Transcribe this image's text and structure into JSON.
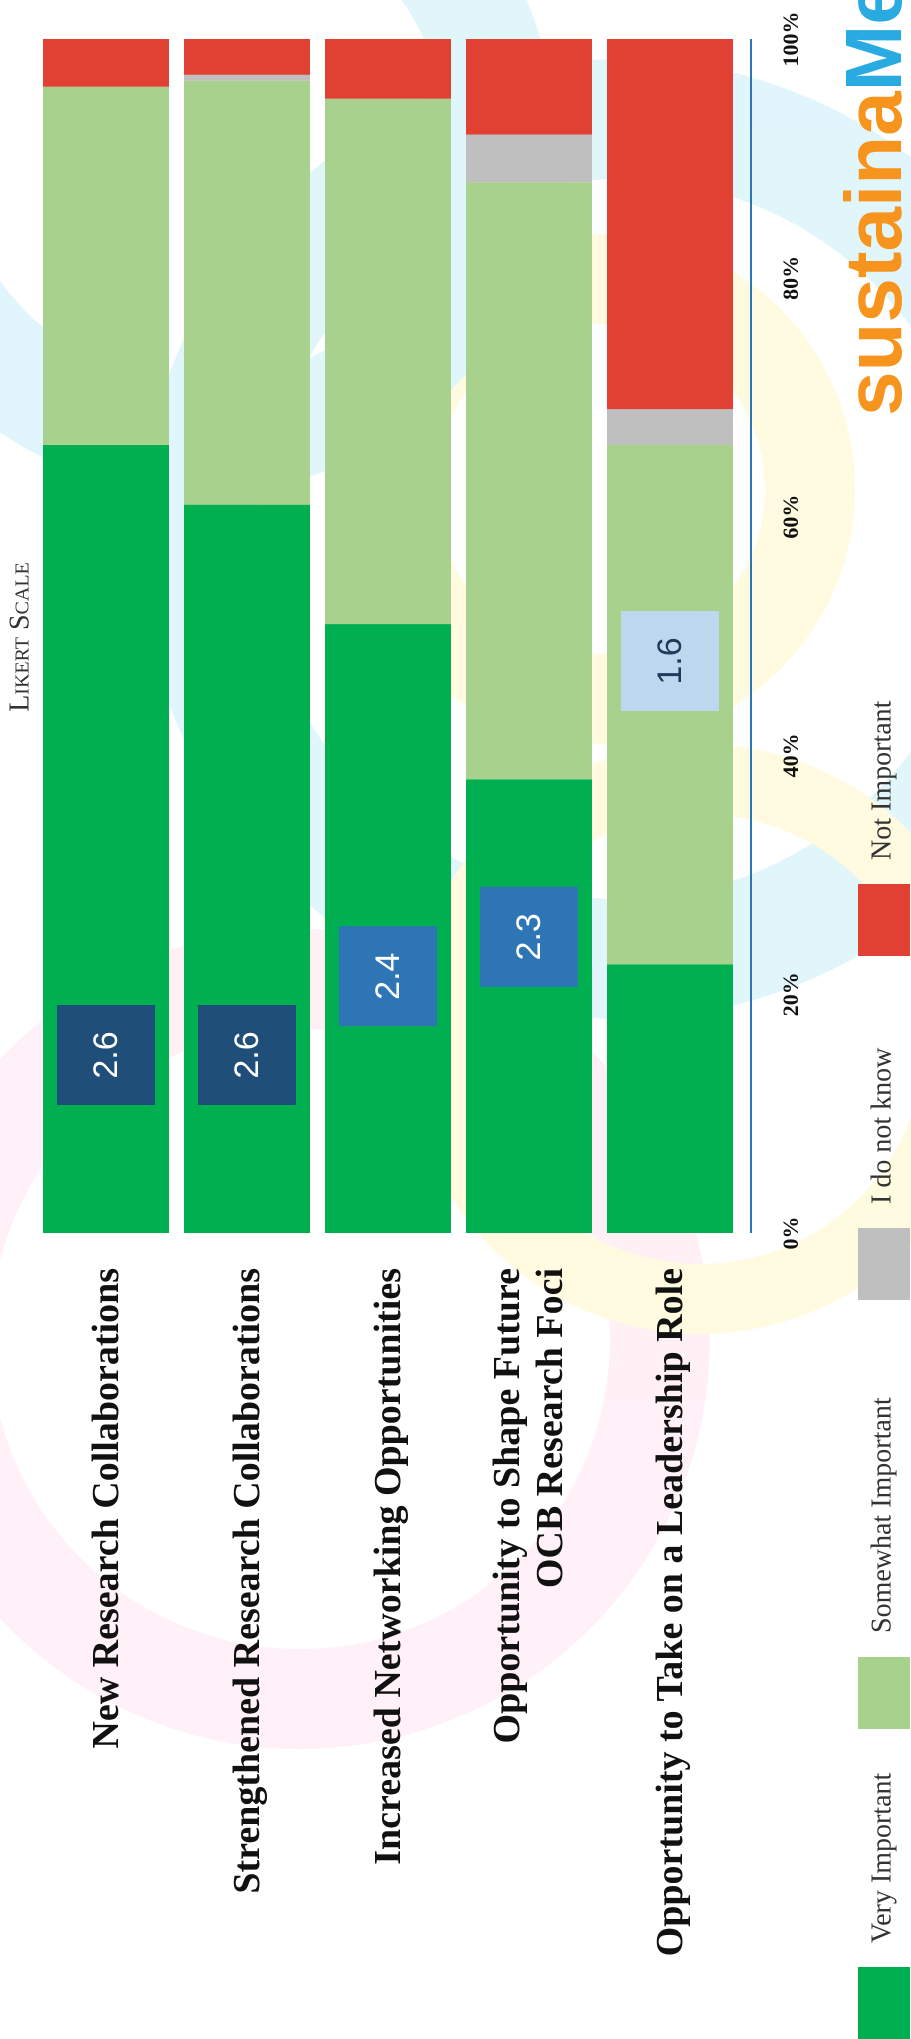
{
  "chart_data": {
    "type": "stacked_bar",
    "orientation": "horizontal",
    "title": "Likert Scale",
    "categories": [
      "New Research Collaborations",
      "Strengthened Research Collaborations",
      "Increased Networking Opportunities",
      "Opportunity to Shape Future\nOCB Research Foci",
      "Opportunity to Take on a Leadership Role"
    ],
    "series": [
      {
        "name": "Very Important",
        "color": "#00b050",
        "values": [
          66,
          61,
          51,
          38,
          22.5
        ]
      },
      {
        "name": "Somewhat Important",
        "color": "#a9d18e",
        "values": [
          30,
          35.5,
          44,
          50,
          43.5
        ]
      },
      {
        "name": "I do not know",
        "color": "#bfbfbf",
        "values": [
          0,
          0.5,
          0,
          4,
          3
        ]
      },
      {
        "name": "Not Important",
        "color": "#e04133",
        "values": [
          4,
          3,
          5,
          8,
          31
        ]
      }
    ],
    "scores": [
      2.6,
      2.6,
      2.4,
      2.3,
      1.6
    ],
    "score_colors": [
      "#1f4e79",
      "#1f4e79",
      "#2e75b6",
      "#2e75b6",
      "#bdd7ee"
    ],
    "xlim": [
      0,
      100
    ],
    "xticks": [
      {
        "value": 0,
        "label": "0%"
      },
      {
        "value": 20,
        "label": "20%"
      },
      {
        "value": 40,
        "label": "40%"
      },
      {
        "value": 60,
        "label": "60%"
      },
      {
        "value": 80,
        "label": "80%"
      },
      {
        "value": 100,
        "label": "100%"
      }
    ],
    "legend": "bottom"
  },
  "logo": {
    "text1": "sustaina",
    "text2": "MeTRIX"
  }
}
